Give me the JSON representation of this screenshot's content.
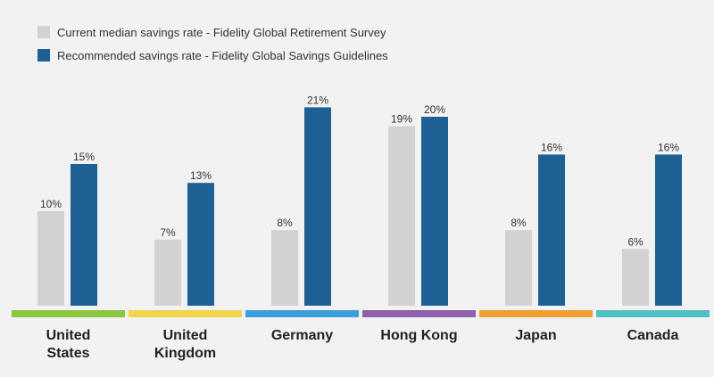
{
  "chart_data": {
    "type": "bar",
    "title": "",
    "xlabel": "",
    "ylabel": "",
    "ylim": [
      0,
      22
    ],
    "grid": false,
    "legend_position": "top-left",
    "categories": [
      {
        "lines": [
          "United",
          "States"
        ],
        "color": "#8dc63f"
      },
      {
        "lines": [
          "United",
          "Kingdom"
        ],
        "color": "#f0d44c"
      },
      {
        "lines": [
          "Germany"
        ],
        "color": "#3b9fdc"
      },
      {
        "lines": [
          "Hong Kong"
        ],
        "color": "#8e5fab"
      },
      {
        "lines": [
          "Japan"
        ],
        "color": "#f0a030"
      },
      {
        "lines": [
          "Canada"
        ],
        "color": "#4fc1c4"
      }
    ],
    "series": [
      {
        "name": "Current median savings rate - Fidelity Global Retirement Survey",
        "color": "#d3d2d2",
        "values": [
          10,
          7,
          8,
          19,
          8,
          6
        ],
        "labels": [
          "10%",
          "7%",
          "8%",
          "19%",
          "8%",
          "6%"
        ]
      },
      {
        "name": "Recommended savings rate - Fidelity Global Savings Guidelines",
        "color": "#1d6093",
        "values": [
          15,
          13,
          21,
          20,
          16,
          16
        ],
        "labels": [
          "15%",
          "13%",
          "21%",
          "20%",
          "16%",
          "16%"
        ]
      }
    ]
  }
}
